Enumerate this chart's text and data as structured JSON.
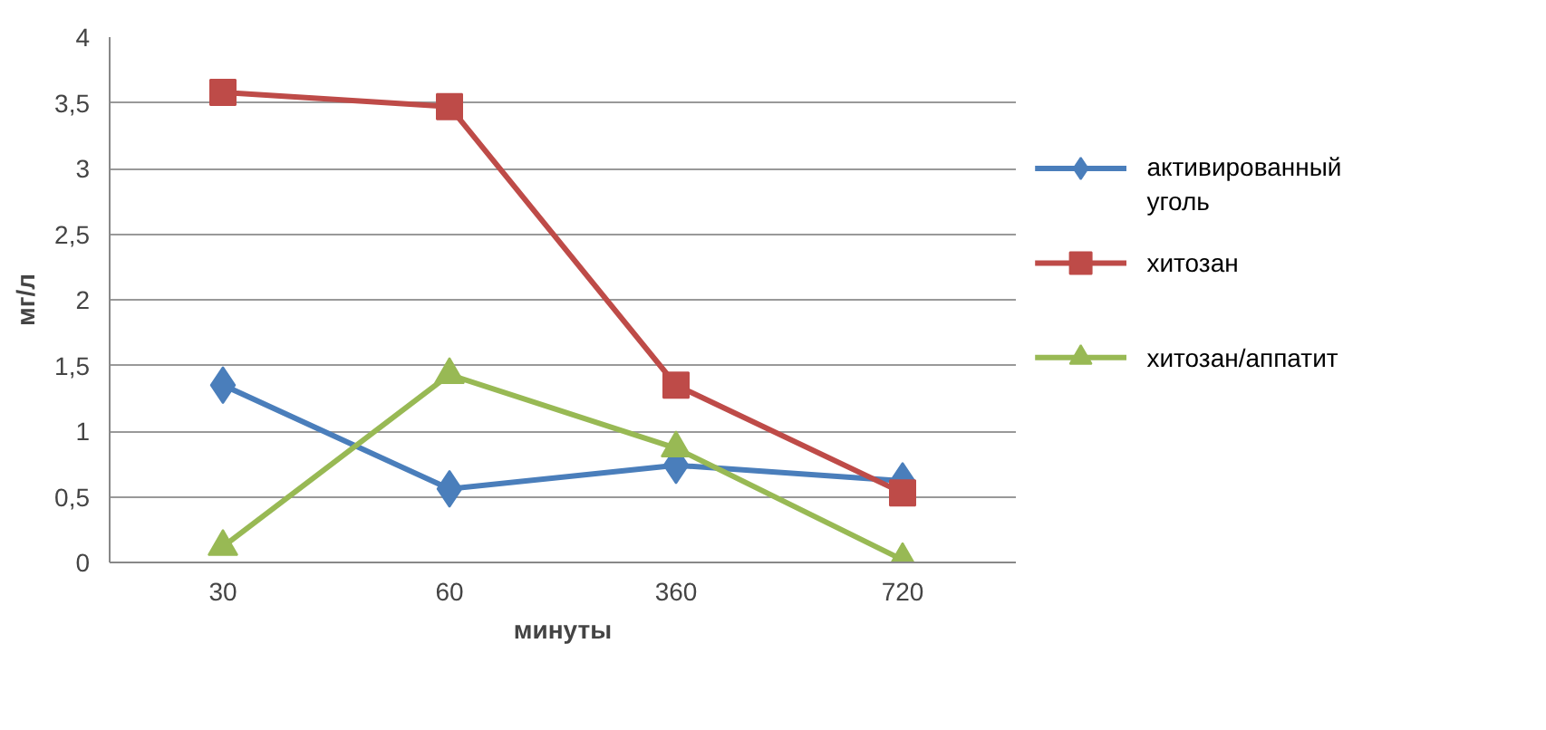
{
  "chart_data": {
    "type": "line",
    "xlabel": "минуты",
    "ylabel": "мг/л",
    "categories": [
      "30",
      "60",
      "360",
      "720"
    ],
    "series": [
      {
        "name": "активированный уголь",
        "color": "#4a7ebb",
        "marker": "diamond",
        "values": [
          1.35,
          0.56,
          0.74,
          0.62
        ]
      },
      {
        "name": "хитозан",
        "color": "#be4b48",
        "marker": "square",
        "values": [
          3.58,
          3.47,
          1.35,
          0.53
        ]
      },
      {
        "name": "хитозан/аппатит",
        "color": "#98b954",
        "marker": "triangle",
        "values": [
          0.12,
          1.43,
          0.87,
          0.02
        ]
      }
    ],
    "ylim": [
      0,
      4
    ],
    "yticks": [
      0,
      {
        "value": 0.5,
        "label": "0,5"
      },
      1,
      {
        "value": 1.5,
        "label": "1,5"
      },
      2,
      {
        "value": 2.5,
        "label": "2,5"
      },
      3,
      {
        "value": 3.5,
        "label": "3,5"
      },
      4
    ],
    "grid": "y",
    "legend": "right",
    "line_style": "solid"
  }
}
